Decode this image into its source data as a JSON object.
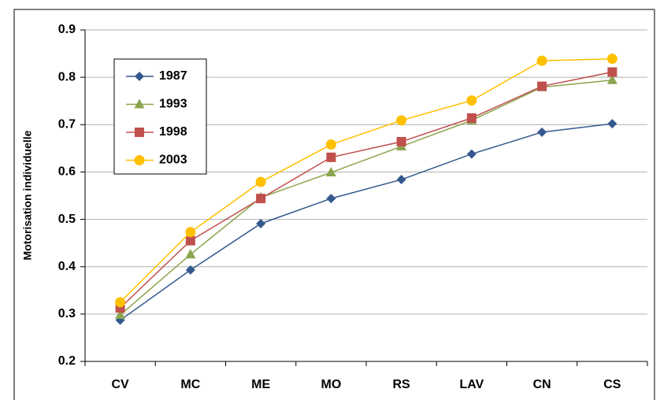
{
  "chart_data": {
    "type": "line",
    "y_label": "Motorisation individuelle",
    "categories": [
      "CV",
      "MC",
      "ME",
      "MO",
      "RS",
      "LAV",
      "CN",
      "CS"
    ],
    "series": [
      {
        "name": "1987",
        "color": "#35598f",
        "marker": "diamond",
        "values": [
          0.287,
          0.393,
          0.491,
          0.544,
          0.584,
          0.638,
          0.684,
          0.702
        ]
      },
      {
        "name": "1993",
        "color": "#8ba54d",
        "marker": "triangle",
        "values": [
          0.298,
          0.426,
          0.546,
          0.599,
          0.654,
          0.709,
          0.779,
          0.794
        ]
      },
      {
        "name": "1998",
        "color": "#c0504d",
        "marker": "square",
        "values": [
          0.313,
          0.455,
          0.544,
          0.631,
          0.664,
          0.714,
          0.781,
          0.811
        ]
      },
      {
        "name": "2003",
        "color": "#ffc000",
        "marker": "circle",
        "values": [
          0.325,
          0.473,
          0.579,
          0.658,
          0.709,
          0.751,
          0.835,
          0.839
        ]
      }
    ],
    "ylim": [
      0.2,
      0.9
    ],
    "yticks": [
      0.2,
      0.3,
      0.4,
      0.5,
      0.6,
      0.7,
      0.8,
      0.9
    ],
    "grid": true,
    "legend": "upper left"
  }
}
